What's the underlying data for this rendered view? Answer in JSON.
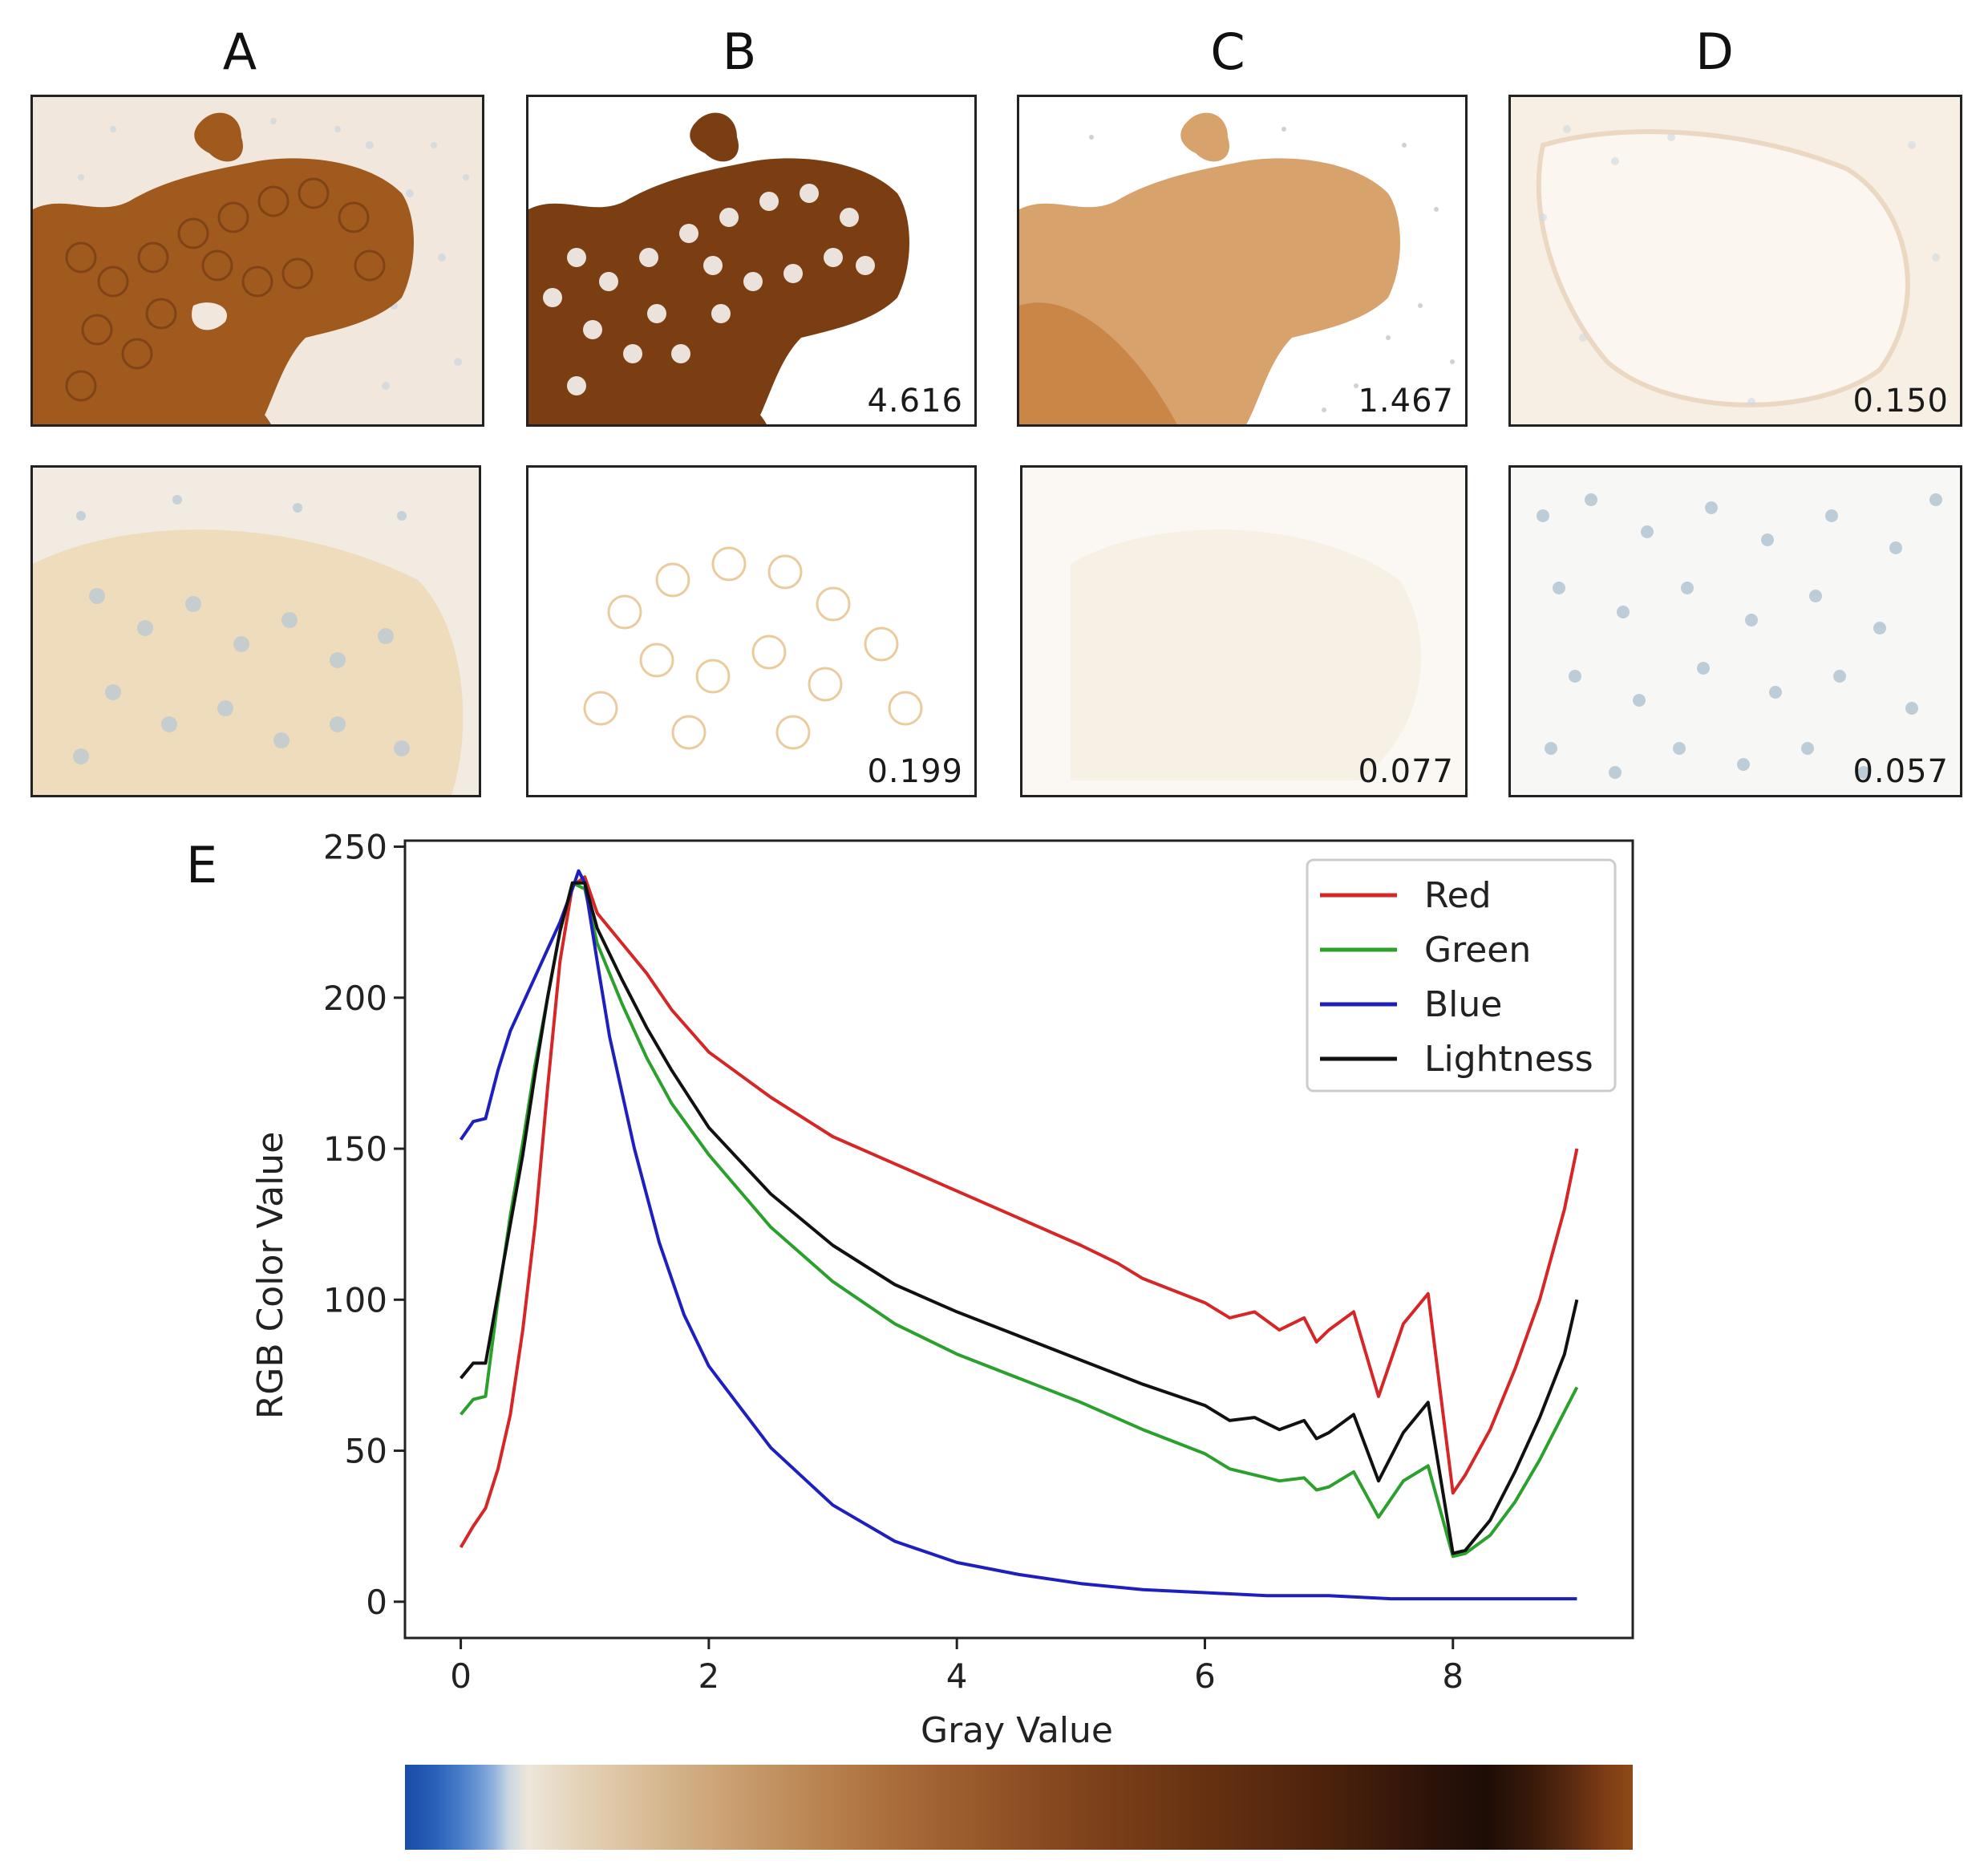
{
  "figure": {
    "col_labels": [
      "A",
      "B",
      "C",
      "D"
    ],
    "panel_values": {
      "B1": "4.616",
      "C1": "1.467",
      "D1": "0.150",
      "B2": "0.199",
      "C2": "0.077",
      "D2": "0.057"
    },
    "panel_e_label": "E"
  },
  "chart_data": {
    "type": "line",
    "title": "",
    "xlabel": "Gray Value",
    "ylabel": "RGB Color Value",
    "xlim": [
      -0.45,
      9.45
    ],
    "ylim": [
      -12,
      252
    ],
    "xticks": [
      "0",
      "2",
      "4",
      "6",
      "8"
    ],
    "xtick_values": [
      0,
      2,
      4,
      6,
      8
    ],
    "yticks": [
      "0",
      "50",
      "100",
      "150",
      "200",
      "250"
    ],
    "ytick_values": [
      0,
      50,
      100,
      150,
      200,
      250
    ],
    "legend_position": "top-right",
    "series": [
      {
        "name": "Red",
        "color": "#d62728",
        "x": [
          0,
          0.1,
          0.2,
          0.3,
          0.4,
          0.5,
          0.6,
          0.7,
          0.8,
          0.9,
          1.0,
          1.1,
          1.3,
          1.5,
          1.7,
          2.0,
          2.5,
          3.0,
          3.5,
          4.0,
          4.5,
          5.0,
          5.3,
          5.5,
          6.0,
          6.2,
          6.4,
          6.6,
          6.8,
          6.9,
          7.0,
          7.2,
          7.4,
          7.6,
          7.8,
          8.0,
          8.1,
          8.3,
          8.5,
          8.7,
          8.9,
          9.0
        ],
        "y": [
          18,
          25,
          31,
          44,
          62,
          90,
          125,
          170,
          212,
          237,
          240,
          228,
          218,
          208,
          196,
          182,
          167,
          154,
          145,
          136,
          127,
          118,
          112,
          107,
          99,
          94,
          96,
          90,
          94,
          86,
          90,
          96,
          68,
          92,
          102,
          36,
          42,
          57,
          77,
          100,
          130,
          150
        ]
      },
      {
        "name": "Green",
        "color": "#2ca02c",
        "x": [
          0,
          0.1,
          0.2,
          0.3,
          0.4,
          0.5,
          0.6,
          0.7,
          0.8,
          0.9,
          1.0,
          1.1,
          1.3,
          1.5,
          1.7,
          2.0,
          2.5,
          3.0,
          3.5,
          4.0,
          4.5,
          5.0,
          5.5,
          6.0,
          6.2,
          6.4,
          6.6,
          6.8,
          6.9,
          7.0,
          7.2,
          7.4,
          7.6,
          7.8,
          8.0,
          8.1,
          8.3,
          8.5,
          8.7,
          8.9,
          9.0
        ],
        "y": [
          62,
          67,
          68,
          100,
          128,
          152,
          178,
          200,
          222,
          238,
          236,
          218,
          198,
          180,
          165,
          148,
          124,
          106,
          92,
          82,
          74,
          66,
          57,
          49,
          44,
          42,
          40,
          41,
          37,
          38,
          43,
          28,
          40,
          45,
          15,
          16,
          22,
          33,
          47,
          63,
          71
        ]
      },
      {
        "name": "Blue",
        "color": "#1f1fbf",
        "x": [
          0,
          0.1,
          0.2,
          0.3,
          0.4,
          0.5,
          0.6,
          0.7,
          0.8,
          0.9,
          0.95,
          1.0,
          1.1,
          1.2,
          1.4,
          1.6,
          1.8,
          2.0,
          2.5,
          3.0,
          3.5,
          4.0,
          4.5,
          5.0,
          5.5,
          6.0,
          6.5,
          7.0,
          7.5,
          8.0,
          8.5,
          9.0
        ],
        "y": [
          153,
          159,
          160,
          176,
          189,
          198,
          207,
          216,
          225,
          236,
          242,
          238,
          212,
          187,
          150,
          119,
          95,
          78,
          51,
          32,
          20,
          13,
          9,
          6,
          4,
          3,
          2,
          2,
          1,
          1,
          1,
          1
        ]
      },
      {
        "name": "Lightness",
        "color": "#111111",
        "x": [
          0,
          0.1,
          0.2,
          0.3,
          0.4,
          0.5,
          0.6,
          0.7,
          0.8,
          0.9,
          1.0,
          1.1,
          1.3,
          1.5,
          1.7,
          2.0,
          2.5,
          3.0,
          3.5,
          4.0,
          4.5,
          5.0,
          5.5,
          6.0,
          6.2,
          6.4,
          6.6,
          6.8,
          6.9,
          7.0,
          7.2,
          7.4,
          7.6,
          7.8,
          8.0,
          8.1,
          8.3,
          8.5,
          8.7,
          8.9,
          9.0
        ],
        "y": [
          74,
          79,
          79,
          102,
          125,
          148,
          175,
          200,
          222,
          238,
          238,
          223,
          206,
          190,
          176,
          157,
          135,
          118,
          105,
          96,
          88,
          80,
          72,
          65,
          60,
          61,
          57,
          60,
          54,
          56,
          62,
          40,
          56,
          66,
          16,
          17,
          27,
          43,
          61,
          82,
          100
        ]
      }
    ]
  },
  "colorbar": {
    "colors": [
      "#1a4ba8",
      "#2155b0",
      "#2a60b8",
      "#3a70c2",
      "#4e82cc",
      "#6b97d4",
      "#8fb0dc",
      "#c9d6e2",
      "#ece6d9",
      "#e3cfb3",
      "#d8bb94",
      "#cda679",
      "#c29261",
      "#b67f4c",
      "#a96c3b",
      "#9c5d2e",
      "#8e4f24",
      "#80441c",
      "#733a16",
      "#663111",
      "#5a2a0f",
      "#4c220c",
      "#3a190a",
      "#2a1208",
      "#1e0d06",
      "#3a1a0a",
      "#5a2a10",
      "#7a3a14",
      "#8e4a18"
    ],
    "stops": [
      0,
      0.012,
      0.024,
      0.036,
      0.048,
      0.06,
      0.072,
      0.084,
      0.1,
      0.15,
      0.2,
      0.25,
      0.3,
      0.35,
      0.4,
      0.45,
      0.5,
      0.55,
      0.6,
      0.65,
      0.7,
      0.75,
      0.8,
      0.84,
      0.88,
      0.92,
      0.95,
      0.975,
      1.0
    ]
  }
}
